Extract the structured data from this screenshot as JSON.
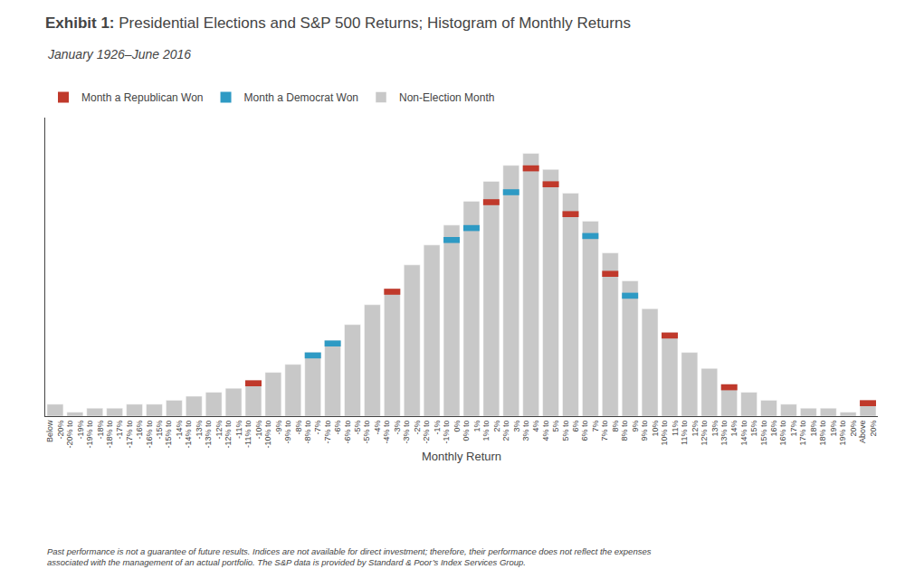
{
  "chart_data": {
    "type": "bar",
    "title": "Exhibit 1: Presidential Elections and S&P 500 Returns; Histogram of Monthly Returns",
    "subtitle": "January 1926–June 2016",
    "xlabel": "Monthly Return",
    "footnote": "Past performance is not a guarantee of future results. Indices are not available for direct investment; therefore, their performance does not reflect the expenses\nassociated with the management of an actual portfolio. The S&P data is provided by Standard & Poor’s Index Services Group.",
    "categories": [
      "Below\n-20%",
      "-20% to\n-19%",
      "-19% to\n-18%",
      "-18% to\n-17%",
      "-17% to\n-16%",
      "-16% to\n-15%",
      "-15% to\n-14%",
      "-14% to\n-13%",
      "-13% to\n-12%",
      "-12% to\n-11%",
      "-11% to\n-10%",
      "-10% to\n-9%",
      "-9% to\n-8%",
      "-8% to\n-7%",
      "-7% to\n-6%",
      "-6% to\n-5%",
      "-5% to\n-4%",
      "-4% to\n-3%",
      "-3% to\n-2%",
      "-2% to\n-1%",
      "-1% to\n0%",
      "0% to\n1%",
      "1% to\n2%",
      "2% to\n3%",
      "3% to\n4%",
      "4% to\n5%",
      "5% to\n6%",
      "6% to\n7%",
      "7% to\n8%",
      "8% to\n9%",
      "9% to\n10%",
      "10% to\n11%",
      "11% to\n12%",
      "12% to\n13%",
      "13% to\n14%",
      "14% to\n15%",
      "15% to\n16%",
      "16% to\n17%",
      "17% to\n18%",
      "18% to\n19%",
      "19% to\n20%",
      "Above\n20%"
    ],
    "series": [
      {
        "name": "Month a Republican Won",
        "color": "#C0392B",
        "values": [
          null,
          null,
          null,
          null,
          null,
          null,
          null,
          null,
          null,
          null,
          1.5,
          null,
          null,
          null,
          null,
          null,
          null,
          1.5,
          null,
          null,
          null,
          null,
          1.5,
          null,
          1.5,
          1.5,
          1.5,
          null,
          1.5,
          null,
          null,
          1.5,
          null,
          null,
          1.5,
          null,
          null,
          null,
          null,
          null,
          null,
          1.5
        ],
        "base": [
          null,
          null,
          null,
          null,
          null,
          null,
          null,
          null,
          null,
          null,
          7.5,
          null,
          null,
          null,
          null,
          null,
          null,
          30.5,
          null,
          null,
          null,
          null,
          53,
          null,
          61.5,
          57.5,
          50,
          null,
          35,
          null,
          null,
          19.5,
          null,
          null,
          6.5,
          null,
          null,
          null,
          null,
          null,
          null,
          2.5
        ]
      },
      {
        "name": "Month a Democrat Won",
        "color": "#2E9AC4",
        "values": [
          null,
          null,
          null,
          null,
          null,
          null,
          null,
          null,
          null,
          null,
          null,
          null,
          null,
          1.5,
          1.5,
          null,
          null,
          null,
          null,
          null,
          1.5,
          1.5,
          null,
          1.5,
          null,
          null,
          null,
          1.5,
          null,
          1.5,
          null,
          null,
          null,
          null,
          null,
          null,
          null,
          null,
          null,
          null,
          null,
          null
        ],
        "base": [
          null,
          null,
          null,
          null,
          null,
          null,
          null,
          null,
          null,
          null,
          null,
          null,
          null,
          14.5,
          17.5,
          null,
          null,
          null,
          null,
          null,
          43.5,
          46.5,
          null,
          55.5,
          null,
          null,
          null,
          44.5,
          null,
          29.5,
          null,
          null,
          null,
          null,
          null,
          null,
          null,
          null,
          null,
          null,
          null,
          null
        ]
      },
      {
        "name": "Non-Election Month",
        "color": "#C8C8C8",
        "values": [
          3,
          1,
          2,
          2,
          3,
          3,
          4,
          5,
          6,
          7,
          9,
          11,
          13,
          16,
          19,
          23,
          28,
          32,
          38,
          43,
          48,
          54,
          59,
          63,
          66,
          62,
          56,
          49,
          41,
          34,
          27,
          21,
          16,
          12,
          8,
          6,
          4,
          3,
          2,
          2,
          1,
          4
        ]
      }
    ],
    "ylim": [
      0,
      75
    ],
    "grid": false,
    "tick_labels": "x",
    "legend": "top left"
  }
}
